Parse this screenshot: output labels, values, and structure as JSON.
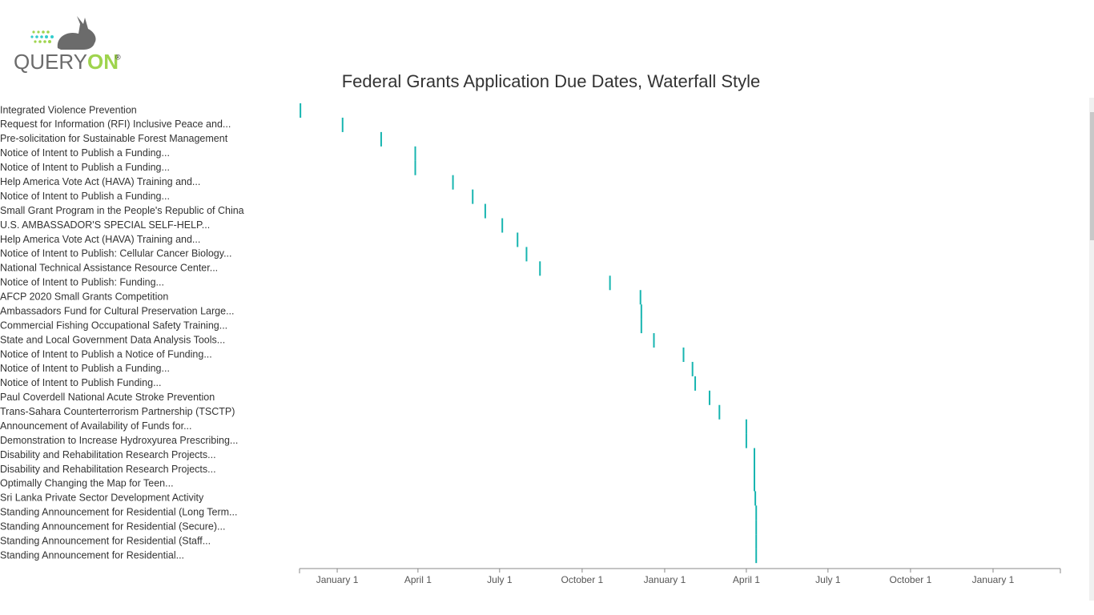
{
  "logo": {
    "part1": "QUERY",
    "part2": "ON",
    "mark": "®"
  },
  "chart_data": {
    "type": "timeline",
    "title": "Federal Grants Application Due Dates, Waterfall Style",
    "color": "#17b5b0",
    "categories": [
      "Integrated Violence Prevention",
      "Request for Information (RFI) Inclusive Peace and...",
      "Pre-solicitation for Sustainable Forest Management",
      "Notice of Intent to Publish a Funding...",
      "Notice of Intent to Publish a Funding...",
      "Help America Vote Act (HAVA) Training and...",
      "Notice of Intent to Publish a Funding...",
      "Small Grant Program in the People's Republic of China",
      "U.S. AMBASSADOR'S SPECIAL SELF-HELP...",
      "Help America Vote Act (HAVA) Training and...",
      "Notice of Intent to Publish: Cellular Cancer Biology...",
      "National Technical Assistance Resource Center...",
      "Notice of Intent to Publish: Funding...",
      "AFCP 2020 Small Grants Competition",
      "Ambassadors Fund for Cultural Preservation Large...",
      "Commercial Fishing Occupational Safety Training...",
      "State and Local Government Data Analysis Tools...",
      "Notice of Intent to Publish a Notice of Funding...",
      "Notice of Intent to Publish a Funding...",
      "Notice of Intent to Publish Funding...",
      "Paul Coverdell National Acute Stroke Prevention",
      "Trans-Sahara Counterterrorism Partnership (TSCTP)",
      "Announcement of Availability of Funds for...",
      "Demonstration to Increase Hydroxyurea Prescribing...",
      "Disability and Rehabilitation Research Projects...",
      "Disability and Rehabilitation Research Projects...",
      "Optimally Changing the Map for Teen...",
      "Sri Lanka Private Sector Development Activity",
      "Standing Announcement for Residential (Long Term...",
      "Standing Announcement for Residential (Secure)...",
      "Standing Announcement for Residential (Staff...",
      "Standing Announcement for Residential..."
    ],
    "values": [
      -41,
      6,
      49,
      87,
      87,
      129,
      151,
      165,
      184,
      201,
      211,
      226,
      304,
      338,
      339,
      339,
      353,
      386,
      396,
      399,
      415,
      426,
      456,
      456,
      465,
      465,
      465,
      466,
      467,
      467,
      467,
      467
    ],
    "xlim": [
      -42,
      806
    ],
    "xticks": [
      {
        "value": 0,
        "label": "January 1"
      },
      {
        "value": 90,
        "label": "April 1"
      },
      {
        "value": 181,
        "label": "July 1"
      },
      {
        "value": 273,
        "label": "October 1"
      },
      {
        "value": 365,
        "label": "January 1"
      },
      {
        "value": 456,
        "label": "April 1"
      },
      {
        "value": 547,
        "label": "July 1"
      },
      {
        "value": 639,
        "label": "October 1"
      },
      {
        "value": 731,
        "label": "January 1"
      }
    ]
  }
}
